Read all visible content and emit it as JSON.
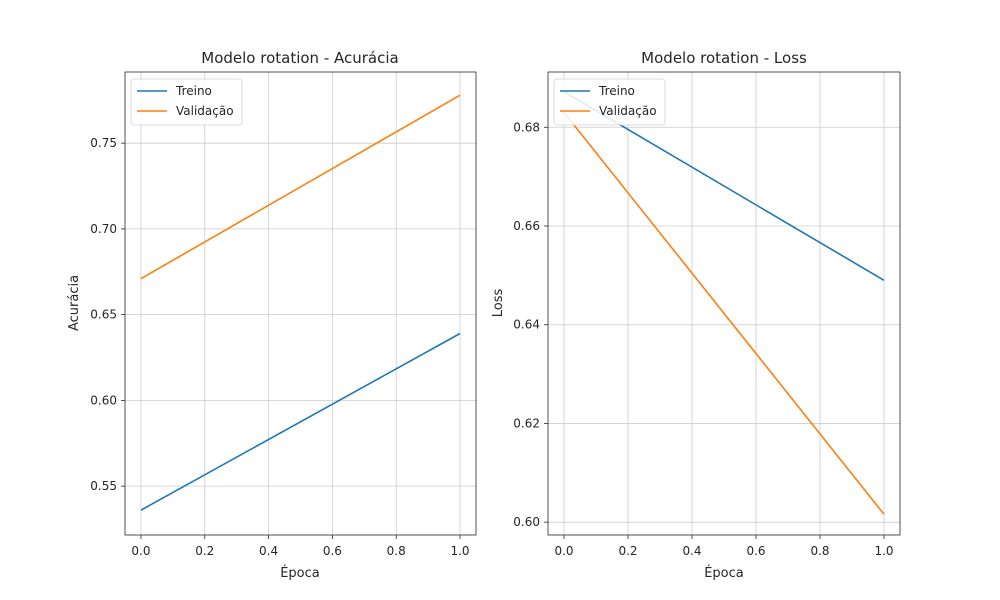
{
  "chart_data": [
    {
      "type": "line",
      "title": "Modelo rotation - Acurácia",
      "xlabel": "Época",
      "ylabel": "Acurácia",
      "x": [
        0.0,
        1.0
      ],
      "xlim": [
        -0.05,
        1.05
      ],
      "ylim": [
        0.5215,
        0.7915
      ],
      "xticks": [
        0.0,
        0.2,
        0.4,
        0.6,
        0.8,
        1.0
      ],
      "yticks": [
        0.55,
        0.6,
        0.65,
        0.7,
        0.75
      ],
      "xtick_labels": [
        "0.0",
        "0.2",
        "0.4",
        "0.6",
        "0.8",
        "1.0"
      ],
      "ytick_labels": [
        "0.55",
        "0.60",
        "0.65",
        "0.70",
        "0.75"
      ],
      "grid": true,
      "legend": "upper-left",
      "series": [
        {
          "name": "Treino",
          "color": "#1f77b4",
          "values": [
            0.536,
            0.639
          ]
        },
        {
          "name": "Validação",
          "color": "#ff7f0e",
          "values": [
            0.671,
            0.778
          ]
        }
      ]
    },
    {
      "type": "line",
      "title": "Modelo rotation - Loss",
      "xlabel": "Época",
      "ylabel": "Loss",
      "x": [
        0.0,
        1.0
      ],
      "xlim": [
        -0.05,
        1.05
      ],
      "ylim": [
        0.5974,
        0.6912
      ],
      "xticks": [
        0.0,
        0.2,
        0.4,
        0.6,
        0.8,
        1.0
      ],
      "yticks": [
        0.6,
        0.62,
        0.64,
        0.66,
        0.68
      ],
      "xtick_labels": [
        "0.0",
        "0.2",
        "0.4",
        "0.6",
        "0.8",
        "1.0"
      ],
      "ytick_labels": [
        "0.60",
        "0.62",
        "0.64",
        "0.66",
        "0.68"
      ],
      "grid": true,
      "legend": "upper-left",
      "series": [
        {
          "name": "Treino",
          "color": "#1f77b4",
          "values": [
            0.6872,
            0.649
          ]
        },
        {
          "name": "Validação",
          "color": "#ff7f0e",
          "values": [
            0.683,
            0.6016
          ]
        }
      ]
    }
  ]
}
